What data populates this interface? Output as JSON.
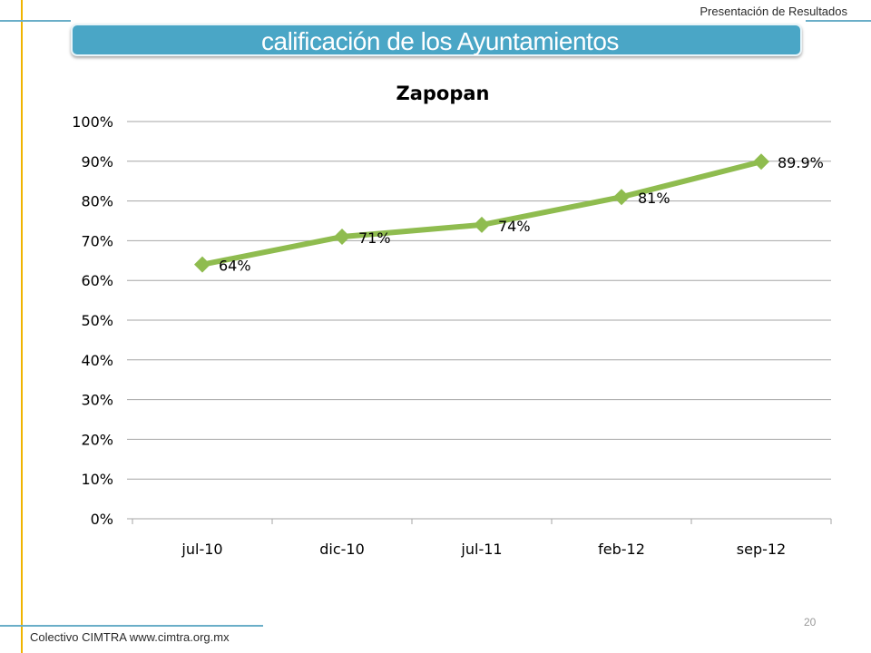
{
  "header": {
    "top_right": "Presentación de Resultados",
    "title": "calificación de los  Ayuntamientos"
  },
  "footer": {
    "left": "Colectivo CIMTRA www.cimtra.org.mx",
    "page_number": "20"
  },
  "colors": {
    "accent_bar": "#4aa6c6",
    "vertical_line": "#f0b400",
    "series_line": "#8fbc4f",
    "gridline": "#a6a6a6"
  },
  "chart_data": {
    "type": "line",
    "title": "Zapopan",
    "categories": [
      "jul-10",
      "dic-10",
      "jul-11",
      "feb-12",
      "sep-12"
    ],
    "values": [
      64,
      71,
      74,
      81,
      89.9
    ],
    "data_labels": [
      "64%",
      "71%",
      "74%",
      "81%",
      "89.9%"
    ],
    "ylim": [
      0,
      100
    ],
    "yticks": [
      "0%",
      "10%",
      "20%",
      "30%",
      "40%",
      "50%",
      "60%",
      "70%",
      "80%",
      "90%",
      "100%"
    ],
    "xlabel": "",
    "ylabel": "",
    "grid": true,
    "legend": "none",
    "marker": "diamond"
  }
}
